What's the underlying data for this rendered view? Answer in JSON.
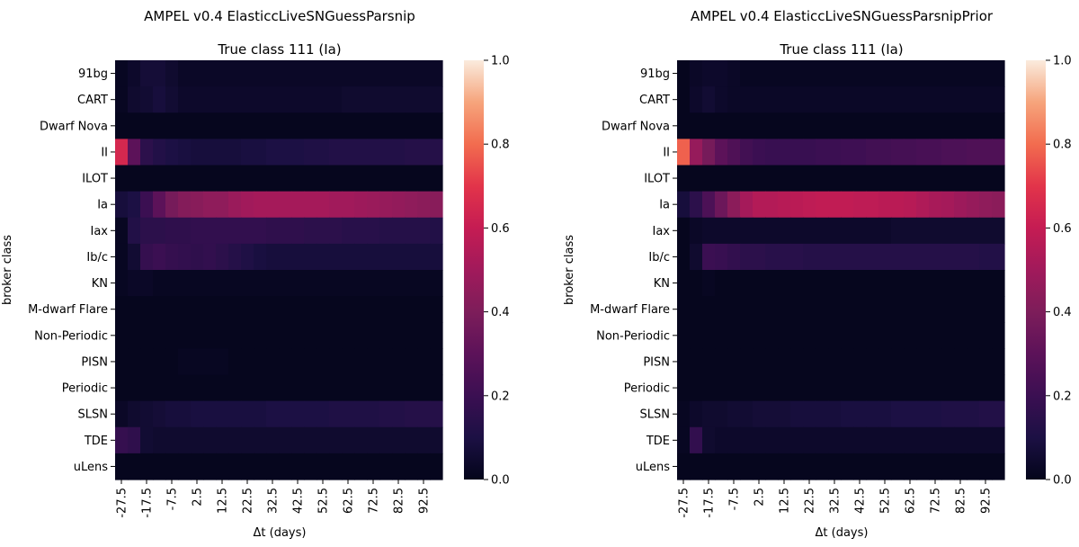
{
  "chart_data": [
    {
      "type": "heatmap",
      "title": "AMPEL v0.4 ElasticcLiveSNGuessParsnip",
      "subtitle": "True class 111 (Ia)",
      "xlabel": "Δt (days)",
      "ylabel": "broker class",
      "x": [
        -27.5,
        -22.5,
        -17.5,
        -12.5,
        -7.5,
        -2.5,
        2.5,
        7.5,
        12.5,
        17.5,
        22.5,
        27.5,
        32.5,
        37.5,
        42.5,
        47.5,
        52.5,
        57.5,
        62.5,
        67.5,
        72.5,
        77.5,
        82.5,
        87.5,
        92.5,
        97.5
      ],
      "x_tick_labels": [
        "-27.5",
        "-17.5",
        "-7.5",
        "2.5",
        "12.5",
        "22.5",
        "32.5",
        "42.5",
        "52.5",
        "62.5",
        "72.5",
        "82.5",
        "92.5"
      ],
      "categories": [
        "91bg",
        "CART",
        "Dwarf Nova",
        "II",
        "ILOT",
        "Ia",
        "Iax",
        "Ib/c",
        "KN",
        "M-dwarf Flare",
        "Non-Periodic",
        "PISN",
        "Periodic",
        "SLSN",
        "TDE",
        "uLens"
      ],
      "colorbar": {
        "range": [
          0.0,
          1.0
        ],
        "ticks": [
          "0.0",
          "0.2",
          "0.4",
          "0.6",
          "0.8",
          "1.0"
        ]
      },
      "values": [
        [
          0.02,
          0.04,
          0.07,
          0.07,
          0.05,
          0.03,
          0.03,
          0.03,
          0.03,
          0.03,
          0.03,
          0.03,
          0.03,
          0.03,
          0.03,
          0.03,
          0.03,
          0.03,
          0.03,
          0.03,
          0.03,
          0.03,
          0.03,
          0.03,
          0.03,
          0.03
        ],
        [
          0.02,
          0.05,
          0.06,
          0.08,
          0.06,
          0.04,
          0.04,
          0.04,
          0.04,
          0.04,
          0.04,
          0.04,
          0.04,
          0.04,
          0.04,
          0.04,
          0.04,
          0.04,
          0.05,
          0.05,
          0.05,
          0.05,
          0.05,
          0.05,
          0.05,
          0.05
        ],
        [
          0.01,
          0.01,
          0.01,
          0.01,
          0.01,
          0.01,
          0.01,
          0.01,
          0.01,
          0.01,
          0.01,
          0.01,
          0.01,
          0.01,
          0.01,
          0.01,
          0.01,
          0.01,
          0.01,
          0.01,
          0.01,
          0.01,
          0.01,
          0.01,
          0.01,
          0.01
        ],
        [
          0.65,
          0.3,
          0.15,
          0.12,
          0.1,
          0.09,
          0.08,
          0.08,
          0.08,
          0.08,
          0.09,
          0.09,
          0.1,
          0.1,
          0.1,
          0.11,
          0.11,
          0.12,
          0.12,
          0.12,
          0.12,
          0.12,
          0.12,
          0.13,
          0.13,
          0.13
        ],
        [
          0.01,
          0.01,
          0.01,
          0.01,
          0.01,
          0.01,
          0.01,
          0.01,
          0.01,
          0.01,
          0.01,
          0.01,
          0.01,
          0.01,
          0.01,
          0.01,
          0.01,
          0.01,
          0.01,
          0.01,
          0.01,
          0.01,
          0.01,
          0.01,
          0.01,
          0.01
        ],
        [
          0.08,
          0.1,
          0.2,
          0.3,
          0.38,
          0.42,
          0.43,
          0.45,
          0.45,
          0.48,
          0.5,
          0.51,
          0.51,
          0.51,
          0.51,
          0.51,
          0.51,
          0.5,
          0.5,
          0.49,
          0.48,
          0.47,
          0.46,
          0.45,
          0.44,
          0.43
        ],
        [
          0.02,
          0.12,
          0.15,
          0.15,
          0.16,
          0.16,
          0.17,
          0.17,
          0.17,
          0.17,
          0.17,
          0.17,
          0.16,
          0.16,
          0.16,
          0.15,
          0.15,
          0.15,
          0.14,
          0.14,
          0.14,
          0.13,
          0.13,
          0.13,
          0.13,
          0.12
        ],
        [
          0.02,
          0.06,
          0.18,
          0.2,
          0.18,
          0.17,
          0.16,
          0.17,
          0.15,
          0.13,
          0.11,
          0.09,
          0.08,
          0.08,
          0.08,
          0.08,
          0.08,
          0.08,
          0.08,
          0.08,
          0.08,
          0.08,
          0.08,
          0.08,
          0.08,
          0.08
        ],
        [
          0.02,
          0.03,
          0.03,
          0.02,
          0.02,
          0.02,
          0.02,
          0.02,
          0.02,
          0.02,
          0.02,
          0.02,
          0.02,
          0.02,
          0.02,
          0.02,
          0.02,
          0.02,
          0.02,
          0.02,
          0.02,
          0.02,
          0.02,
          0.02,
          0.02,
          0.02
        ],
        [
          0.01,
          0.01,
          0.01,
          0.01,
          0.01,
          0.01,
          0.01,
          0.01,
          0.01,
          0.01,
          0.01,
          0.01,
          0.01,
          0.01,
          0.01,
          0.01,
          0.01,
          0.01,
          0.01,
          0.01,
          0.01,
          0.01,
          0.01,
          0.01,
          0.01,
          0.01
        ],
        [
          0.01,
          0.01,
          0.01,
          0.01,
          0.01,
          0.01,
          0.01,
          0.01,
          0.01,
          0.01,
          0.01,
          0.01,
          0.01,
          0.01,
          0.01,
          0.01,
          0.01,
          0.01,
          0.01,
          0.01,
          0.01,
          0.01,
          0.01,
          0.01,
          0.01,
          0.01
        ],
        [
          0.01,
          0.01,
          0.01,
          0.01,
          0.01,
          0.02,
          0.02,
          0.02,
          0.02,
          0.01,
          0.01,
          0.01,
          0.01,
          0.01,
          0.01,
          0.01,
          0.01,
          0.01,
          0.01,
          0.01,
          0.01,
          0.01,
          0.01,
          0.01,
          0.01,
          0.01
        ],
        [
          0.01,
          0.01,
          0.01,
          0.01,
          0.01,
          0.01,
          0.01,
          0.01,
          0.01,
          0.01,
          0.01,
          0.01,
          0.01,
          0.01,
          0.01,
          0.01,
          0.01,
          0.01,
          0.01,
          0.01,
          0.01,
          0.01,
          0.01,
          0.01,
          0.01,
          0.01
        ],
        [
          0.03,
          0.05,
          0.06,
          0.07,
          0.08,
          0.08,
          0.09,
          0.09,
          0.09,
          0.09,
          0.09,
          0.09,
          0.1,
          0.1,
          0.1,
          0.1,
          0.1,
          0.11,
          0.11,
          0.11,
          0.11,
          0.12,
          0.12,
          0.13,
          0.13,
          0.13
        ],
        [
          0.18,
          0.16,
          0.06,
          0.05,
          0.05,
          0.05,
          0.05,
          0.05,
          0.05,
          0.05,
          0.05,
          0.05,
          0.05,
          0.05,
          0.05,
          0.05,
          0.05,
          0.05,
          0.05,
          0.05,
          0.05,
          0.05,
          0.05,
          0.05,
          0.05,
          0.05
        ],
        [
          0.01,
          0.01,
          0.01,
          0.01,
          0.01,
          0.01,
          0.01,
          0.01,
          0.01,
          0.01,
          0.01,
          0.01,
          0.01,
          0.01,
          0.01,
          0.01,
          0.01,
          0.01,
          0.01,
          0.01,
          0.01,
          0.01,
          0.01,
          0.01,
          0.01,
          0.01
        ]
      ]
    },
    {
      "type": "heatmap",
      "title": "AMPEL v0.4 ElasticcLiveSNGuessParsnipPrior",
      "subtitle": "True class 111 (Ia)",
      "xlabel": "Δt (days)",
      "ylabel": "broker class",
      "x": [
        -27.5,
        -22.5,
        -17.5,
        -12.5,
        -7.5,
        -2.5,
        2.5,
        7.5,
        12.5,
        17.5,
        22.5,
        27.5,
        32.5,
        37.5,
        42.5,
        47.5,
        52.5,
        57.5,
        62.5,
        67.5,
        72.5,
        77.5,
        82.5,
        87.5,
        92.5,
        97.5
      ],
      "x_tick_labels": [
        "-27.5",
        "-17.5",
        "-7.5",
        "2.5",
        "12.5",
        "22.5",
        "32.5",
        "42.5",
        "52.5",
        "62.5",
        "72.5",
        "82.5",
        "92.5"
      ],
      "categories": [
        "91bg",
        "CART",
        "Dwarf Nova",
        "II",
        "ILOT",
        "Ia",
        "Iax",
        "Ib/c",
        "KN",
        "M-dwarf Flare",
        "Non-Periodic",
        "PISN",
        "Periodic",
        "SLSN",
        "TDE",
        "uLens"
      ],
      "colorbar": {
        "range": [
          0.0,
          1.0
        ],
        "ticks": [
          "0.0",
          "0.2",
          "0.4",
          "0.6",
          "0.8",
          "1.0"
        ]
      },
      "values": [
        [
          0.01,
          0.03,
          0.04,
          0.04,
          0.03,
          0.02,
          0.02,
          0.02,
          0.02,
          0.02,
          0.02,
          0.02,
          0.02,
          0.02,
          0.02,
          0.02,
          0.02,
          0.02,
          0.02,
          0.02,
          0.02,
          0.02,
          0.02,
          0.02,
          0.02,
          0.02
        ],
        [
          0.01,
          0.04,
          0.06,
          0.04,
          0.03,
          0.03,
          0.03,
          0.03,
          0.03,
          0.03,
          0.03,
          0.03,
          0.03,
          0.03,
          0.03,
          0.03,
          0.03,
          0.03,
          0.03,
          0.03,
          0.03,
          0.03,
          0.03,
          0.03,
          0.03,
          0.03
        ],
        [
          0.01,
          0.01,
          0.01,
          0.01,
          0.01,
          0.01,
          0.01,
          0.01,
          0.01,
          0.01,
          0.01,
          0.01,
          0.01,
          0.01,
          0.01,
          0.01,
          0.01,
          0.01,
          0.01,
          0.01,
          0.01,
          0.01,
          0.01,
          0.01,
          0.01,
          0.01
        ],
        [
          0.78,
          0.47,
          0.38,
          0.3,
          0.26,
          0.22,
          0.2,
          0.19,
          0.19,
          0.19,
          0.19,
          0.2,
          0.2,
          0.21,
          0.21,
          0.22,
          0.22,
          0.23,
          0.23,
          0.24,
          0.24,
          0.25,
          0.25,
          0.26,
          0.26,
          0.26
        ],
        [
          0.01,
          0.01,
          0.01,
          0.01,
          0.01,
          0.01,
          0.01,
          0.01,
          0.01,
          0.01,
          0.01,
          0.01,
          0.01,
          0.01,
          0.01,
          0.01,
          0.01,
          0.01,
          0.01,
          0.01,
          0.01,
          0.01,
          0.01,
          0.01,
          0.01,
          0.01
        ],
        [
          0.08,
          0.15,
          0.25,
          0.35,
          0.44,
          0.51,
          0.55,
          0.55,
          0.56,
          0.57,
          0.58,
          0.59,
          0.59,
          0.59,
          0.58,
          0.58,
          0.57,
          0.57,
          0.56,
          0.54,
          0.52,
          0.51,
          0.49,
          0.47,
          0.45,
          0.44
        ],
        [
          0.01,
          0.03,
          0.04,
          0.04,
          0.04,
          0.04,
          0.04,
          0.04,
          0.04,
          0.04,
          0.04,
          0.04,
          0.04,
          0.04,
          0.04,
          0.04,
          0.04,
          0.05,
          0.05,
          0.05,
          0.05,
          0.05,
          0.05,
          0.05,
          0.05,
          0.05
        ],
        [
          0.01,
          0.05,
          0.2,
          0.19,
          0.17,
          0.15,
          0.15,
          0.14,
          0.14,
          0.14,
          0.13,
          0.13,
          0.13,
          0.13,
          0.13,
          0.13,
          0.13,
          0.13,
          0.13,
          0.13,
          0.13,
          0.13,
          0.13,
          0.13,
          0.12,
          0.12
        ],
        [
          0.01,
          0.01,
          0.02,
          0.01,
          0.01,
          0.01,
          0.01,
          0.01,
          0.01,
          0.01,
          0.01,
          0.01,
          0.01,
          0.01,
          0.01,
          0.01,
          0.01,
          0.01,
          0.01,
          0.01,
          0.01,
          0.01,
          0.01,
          0.01,
          0.01,
          0.01
        ],
        [
          0.01,
          0.01,
          0.01,
          0.01,
          0.01,
          0.01,
          0.01,
          0.01,
          0.01,
          0.01,
          0.01,
          0.01,
          0.01,
          0.01,
          0.01,
          0.01,
          0.01,
          0.01,
          0.01,
          0.01,
          0.01,
          0.01,
          0.01,
          0.01,
          0.01,
          0.01
        ],
        [
          0.01,
          0.01,
          0.01,
          0.01,
          0.01,
          0.01,
          0.01,
          0.01,
          0.01,
          0.01,
          0.01,
          0.01,
          0.01,
          0.01,
          0.01,
          0.01,
          0.01,
          0.01,
          0.01,
          0.01,
          0.01,
          0.01,
          0.01,
          0.01,
          0.01,
          0.01
        ],
        [
          0.01,
          0.01,
          0.01,
          0.01,
          0.01,
          0.01,
          0.01,
          0.01,
          0.01,
          0.01,
          0.01,
          0.01,
          0.01,
          0.01,
          0.01,
          0.01,
          0.01,
          0.01,
          0.01,
          0.01,
          0.01,
          0.01,
          0.01,
          0.01,
          0.01,
          0.01
        ],
        [
          0.01,
          0.01,
          0.01,
          0.01,
          0.01,
          0.01,
          0.01,
          0.01,
          0.01,
          0.01,
          0.01,
          0.01,
          0.01,
          0.01,
          0.01,
          0.01,
          0.01,
          0.01,
          0.01,
          0.01,
          0.01,
          0.01,
          0.01,
          0.01,
          0.01,
          0.01
        ],
        [
          0.02,
          0.04,
          0.05,
          0.05,
          0.06,
          0.06,
          0.07,
          0.07,
          0.07,
          0.08,
          0.08,
          0.08,
          0.08,
          0.09,
          0.09,
          0.09,
          0.09,
          0.1,
          0.1,
          0.1,
          0.1,
          0.11,
          0.11,
          0.11,
          0.12,
          0.12
        ],
        [
          0.02,
          0.17,
          0.05,
          0.04,
          0.04,
          0.04,
          0.04,
          0.04,
          0.04,
          0.04,
          0.04,
          0.04,
          0.04,
          0.04,
          0.04,
          0.04,
          0.04,
          0.04,
          0.04,
          0.04,
          0.04,
          0.04,
          0.04,
          0.04,
          0.04,
          0.04
        ],
        [
          0.01,
          0.01,
          0.01,
          0.01,
          0.01,
          0.01,
          0.01,
          0.01,
          0.01,
          0.01,
          0.01,
          0.01,
          0.01,
          0.01,
          0.01,
          0.01,
          0.01,
          0.01,
          0.01,
          0.01,
          0.01,
          0.01,
          0.01,
          0.01,
          0.01,
          0.01
        ]
      ]
    }
  ]
}
